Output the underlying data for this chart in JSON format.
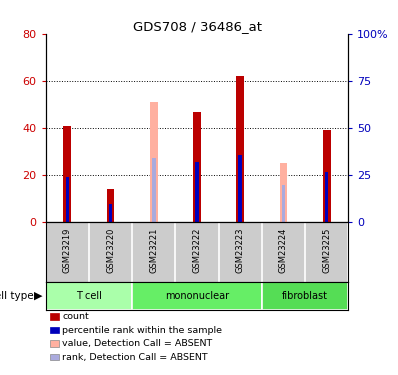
{
  "title": "GDS708 / 36486_at",
  "samples": [
    "GSM23219",
    "GSM23220",
    "GSM23221",
    "GSM23222",
    "GSM23223",
    "GSM23224",
    "GSM23225"
  ],
  "cell_types": [
    {
      "label": "T cell",
      "start": 0,
      "end": 2,
      "color": "#AAFFAA"
    },
    {
      "label": "mononuclear",
      "start": 2,
      "end": 5,
      "color": "#66EE66"
    },
    {
      "label": "fibroblast",
      "start": 5,
      "end": 7,
      "color": "#55DD55"
    }
  ],
  "absent": [
    false,
    false,
    true,
    false,
    false,
    true,
    false
  ],
  "red_values": [
    41,
    14,
    0,
    47,
    62,
    0,
    39
  ],
  "blue_values": [
    24,
    10,
    0,
    32,
    36,
    0,
    27
  ],
  "pink_values": [
    0,
    0,
    51,
    0,
    0,
    25,
    0
  ],
  "lblue_values": [
    0,
    0,
    34,
    0,
    0,
    20,
    0
  ],
  "ylim_left": [
    0,
    80
  ],
  "ylim_right": [
    0,
    100
  ],
  "yticks_left": [
    0,
    20,
    40,
    60,
    80
  ],
  "yticks_right": [
    0,
    25,
    50,
    75,
    100
  ],
  "left_tick_color": "#CC0000",
  "right_tick_color": "#0000BB",
  "red_color": "#BB0000",
  "blue_color": "#0000BB",
  "pink_color": "#FFB0A0",
  "lblue_color": "#AAAADD",
  "bar_width": 0.18,
  "inner_bar_width": 0.08,
  "bg_color": "#FFFFFF",
  "label_bg": "#CCCCCC",
  "legend_items": [
    {
      "label": "count",
      "color": "#BB0000"
    },
    {
      "label": "percentile rank within the sample",
      "color": "#0000BB"
    },
    {
      "label": "value, Detection Call = ABSENT",
      "color": "#FFB0A0"
    },
    {
      "label": "rank, Detection Call = ABSENT",
      "color": "#AAAADD"
    }
  ]
}
